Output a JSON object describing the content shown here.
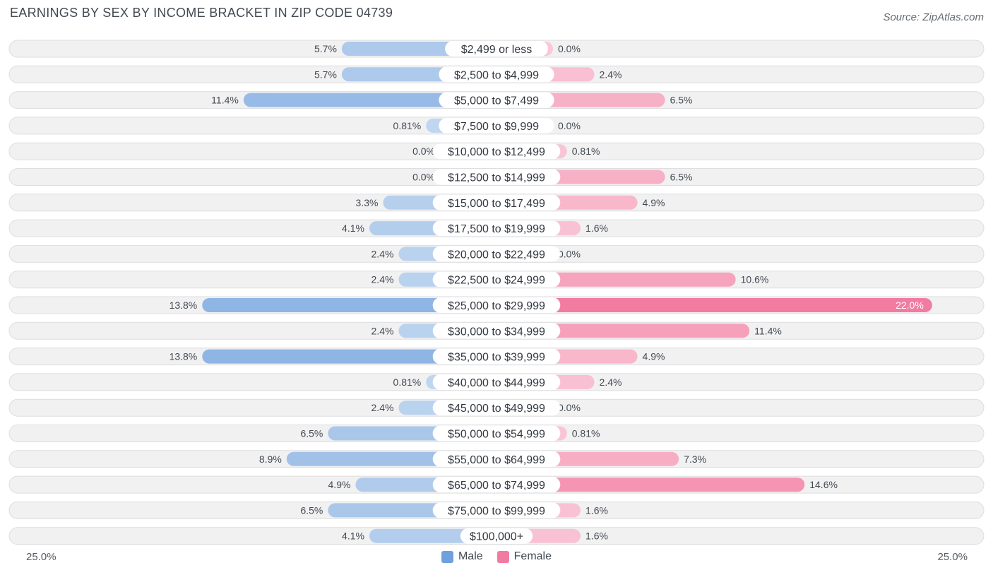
{
  "header": {
    "title": "EARNINGS BY SEX BY INCOME BRACKET IN ZIP CODE 04739",
    "source": "Source: ZipAtlas.com"
  },
  "chart_data": {
    "type": "bar",
    "orientation": "horizontal-diverging",
    "title": "EARNINGS BY SEX BY INCOME BRACKET IN ZIP CODE 04739",
    "categories": [
      "$2,499 or less",
      "$2,500 to $4,999",
      "$5,000 to $7,499",
      "$7,500 to $9,999",
      "$10,000 to $12,499",
      "$12,500 to $14,999",
      "$15,000 to $17,499",
      "$17,500 to $19,999",
      "$20,000 to $22,499",
      "$22,500 to $24,999",
      "$25,000 to $29,999",
      "$30,000 to $34,999",
      "$35,000 to $39,999",
      "$40,000 to $44,999",
      "$45,000 to $49,999",
      "$50,000 to $54,999",
      "$55,000 to $64,999",
      "$65,000 to $74,999",
      "$75,000 to $99,999",
      "$100,000+"
    ],
    "series": [
      {
        "name": "Male",
        "color": "#6fa1dc",
        "values": [
          5.7,
          5.7,
          11.4,
          0.81,
          0.0,
          0.0,
          3.3,
          4.1,
          2.4,
          2.4,
          13.8,
          2.4,
          13.8,
          0.81,
          2.4,
          6.5,
          8.9,
          4.9,
          6.5,
          4.1
        ],
        "labels": [
          "5.7%",
          "5.7%",
          "11.4%",
          "0.81%",
          "0.0%",
          "0.0%",
          "3.3%",
          "4.1%",
          "2.4%",
          "2.4%",
          "13.8%",
          "2.4%",
          "13.8%",
          "0.81%",
          "2.4%",
          "6.5%",
          "8.9%",
          "4.9%",
          "6.5%",
          "4.1%"
        ]
      },
      {
        "name": "Female",
        "color": "#f27ba1",
        "values": [
          0.0,
          2.4,
          6.5,
          0.0,
          0.81,
          6.5,
          4.9,
          1.6,
          0.0,
          10.6,
          22.0,
          11.4,
          4.9,
          2.4,
          0.0,
          0.81,
          7.3,
          14.6,
          1.6,
          1.6
        ],
        "labels": [
          "0.0%",
          "2.4%",
          "6.5%",
          "0.0%",
          "0.81%",
          "6.5%",
          "4.9%",
          "1.6%",
          "0.0%",
          "10.6%",
          "22.0%",
          "11.4%",
          "4.9%",
          "2.4%",
          "0.0%",
          "0.81%",
          "7.3%",
          "14.6%",
          "1.6%",
          "1.6%"
        ]
      }
    ],
    "xlim": [
      -25.0,
      25.0
    ],
    "axis_min_label": "25.0%",
    "axis_max_label": "25.0%",
    "legend_position": "bottom-center"
  },
  "legend": {
    "male": "Male",
    "female": "Female",
    "male_color": "#6fa1dc",
    "female_color": "#f27ba1"
  }
}
